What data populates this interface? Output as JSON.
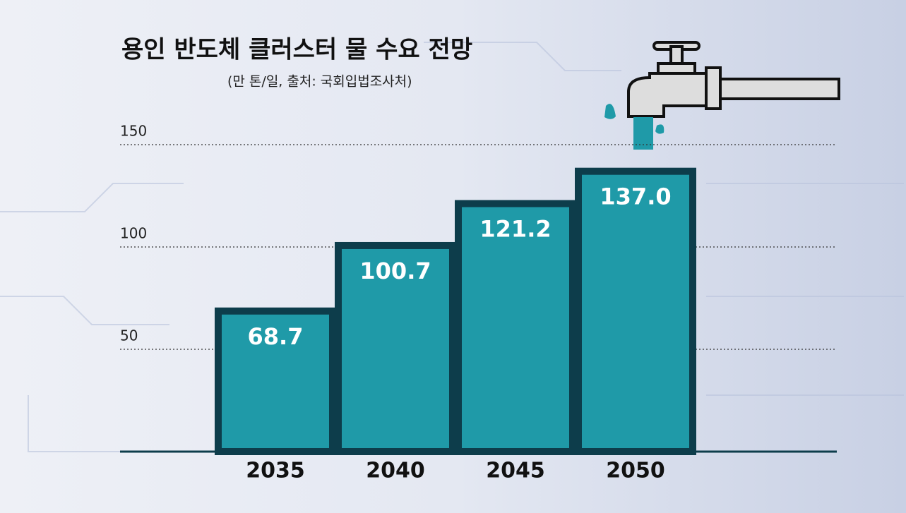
{
  "chart_data": {
    "type": "bar",
    "title": "용인 반도체 클러스터 물 수요 전망",
    "subtitle": "(만 톤/일, 출처: 국회입법조사처)",
    "categories": [
      "2035",
      "2040",
      "2045",
      "2050"
    ],
    "values": [
      68.7,
      100.7,
      121.2,
      137.0
    ],
    "value_labels": [
      "68.7",
      "100.7",
      "121.2",
      "137.0"
    ],
    "color": "#1f9aa8",
    "ylim": [
      0,
      150
    ],
    "yticks": [
      50,
      100,
      150
    ],
    "grid": true
  }
}
